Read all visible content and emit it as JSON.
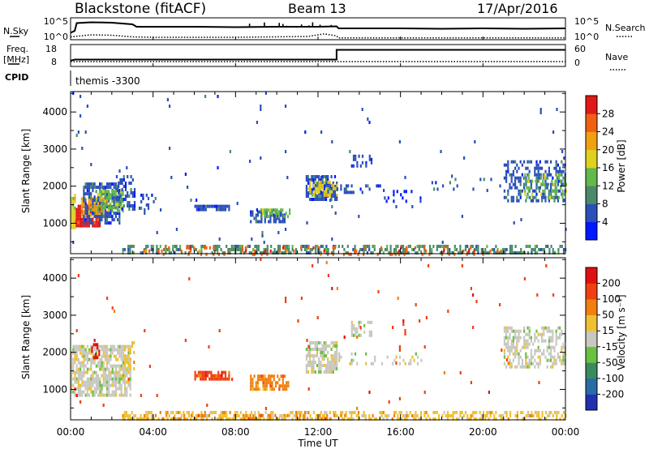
{
  "header": {
    "station": "Blackstone (fitACF)",
    "beam": "Beam 13",
    "date": "17/Apr/2016"
  },
  "top_panels": {
    "nsky_label": "N.Sky",
    "nsearch_label": "N.Search",
    "nsky_ticks": [
      "10^5",
      "10^0"
    ],
    "nsearch_ticks": [
      "10^5",
      "10^0"
    ],
    "freq_label": "Freq.",
    "freq_unit": "[MHz]",
    "freq_ticks": [
      "18",
      "8"
    ],
    "nave_label": "Nave",
    "nave_ticks": [
      "60",
      "0"
    ],
    "cpid_label": "CPID",
    "cpid_text": "themis -3300"
  },
  "axes": {
    "ylabel": "Slant Range [km]",
    "xlabel": "Time UT",
    "y_ticks": [
      "1000",
      "2000",
      "3000",
      "4000"
    ],
    "x_ticks": [
      "00:00",
      "04:00",
      "08:00",
      "12:00",
      "16:00",
      "20:00",
      "00:00"
    ]
  },
  "colorbars": {
    "power": {
      "label": "Power [dB]",
      "ticks": [
        "4",
        "8",
        "12",
        "16",
        "20",
        "24",
        "28"
      ],
      "colors": [
        "#0018ff",
        "#2a4fb8",
        "#4a8a6a",
        "#62b84a",
        "#e0d020",
        "#f0a010",
        "#f06010",
        "#e01818"
      ]
    },
    "velocity": {
      "label": "Velocity [m s⁻¹]",
      "ticks": [
        "200",
        "100",
        "50",
        "15",
        "-15",
        "-50",
        "-100",
        "-200"
      ],
      "colors": [
        "#2030b0",
        "#2a6aa8",
        "#3a8a60",
        "#6ac040",
        "#c8c8c0",
        "#f0c030",
        "#f08010",
        "#f04010",
        "#e01010"
      ]
    }
  },
  "chart_data": [
    {
      "type": "line",
      "title": "N.Sky / N.Search",
      "xlabel": "Time UT",
      "xlim": [
        0,
        24
      ],
      "series": [
        {
          "name": "N.Sky",
          "x": [
            0,
            0.2,
            0.3,
            1,
            2,
            3,
            3.2,
            4,
            6,
            8,
            10,
            12,
            12.9,
            13,
            14,
            16,
            18,
            20,
            22,
            24
          ],
          "y": [
            0.3,
            0.4,
            0.78,
            0.82,
            0.8,
            0.72,
            0.6,
            0.6,
            0.6,
            0.58,
            0.6,
            0.6,
            0.62,
            0.52,
            0.52,
            0.52,
            0.5,
            0.52,
            0.5,
            0.52
          ]
        },
        {
          "name": "N.Search",
          "x": [
            0,
            1,
            2,
            3,
            4,
            8,
            11.5,
            12.3,
            12.9,
            13,
            16,
            20,
            24
          ],
          "y": [
            0.1,
            0.2,
            0.18,
            0.1,
            0.08,
            0.08,
            0.12,
            0.25,
            0.15,
            0.05,
            0.05,
            0.05,
            0.05
          ]
        }
      ]
    },
    {
      "type": "line",
      "title": "Freq. / Nave",
      "xlabel": "Time UT",
      "xlim": [
        0,
        24
      ],
      "series": [
        {
          "name": "Freq.",
          "x": [
            0,
            0.2,
            12.9,
            12.9,
            24
          ],
          "y": [
            10.5,
            11,
            11,
            15.8,
            15.8
          ]
        },
        {
          "name": "Nave",
          "x": [
            0,
            24
          ],
          "y": [
            12,
            12
          ]
        }
      ]
    },
    {
      "type": "heatmap",
      "title": "Power [dB]",
      "xlabel": "Time UT",
      "ylabel": "Slant Range [km]",
      "xlim": [
        0,
        24
      ],
      "ylim": [
        180,
        4550
      ],
      "patches": [
        {
          "t0": 0.0,
          "t1": 0.25,
          "r0": 850,
          "r1": 1800,
          "cat": 4,
          "density": 0.9
        },
        {
          "t0": 0.25,
          "t1": 1.4,
          "r0": 900,
          "r1": 1500,
          "cat": 7,
          "density": 0.85
        },
        {
          "t0": 0.5,
          "t1": 1.8,
          "r0": 1200,
          "r1": 1700,
          "cat": 5,
          "density": 0.8
        },
        {
          "t0": 0.6,
          "t1": 2.4,
          "r0": 1000,
          "r1": 2100,
          "cat": 1,
          "density": 0.55
        },
        {
          "t0": 1.2,
          "t1": 2.5,
          "r0": 1350,
          "r1": 1900,
          "cat": 3,
          "density": 0.6
        },
        {
          "t0": 2.2,
          "t1": 3.1,
          "r0": 1400,
          "r1": 2300,
          "cat": 1,
          "density": 0.4
        },
        {
          "t0": 3.3,
          "t1": 4.2,
          "r0": 1400,
          "r1": 1800,
          "cat": 1,
          "density": 0.2
        },
        {
          "t0": 6.0,
          "t1": 7.7,
          "r0": 1350,
          "r1": 1500,
          "cat": 1,
          "density": 0.75
        },
        {
          "t0": 8.7,
          "t1": 10.4,
          "r0": 1050,
          "r1": 1350,
          "cat": 1,
          "density": 0.7
        },
        {
          "t0": 9.2,
          "t1": 10.6,
          "r0": 1150,
          "r1": 1400,
          "cat": 3,
          "density": 0.5
        },
        {
          "t0": 11.4,
          "t1": 12.9,
          "r0": 1650,
          "r1": 2300,
          "cat": 1,
          "density": 0.75
        },
        {
          "t0": 11.5,
          "t1": 12.9,
          "r0": 1750,
          "r1": 2150,
          "cat": 4,
          "density": 0.45
        },
        {
          "t0": 12.9,
          "t1": 15.0,
          "r0": 1800,
          "r1": 2050,
          "cat": 1,
          "density": 0.25
        },
        {
          "t0": 13.6,
          "t1": 14.6,
          "r0": 2550,
          "r1": 2850,
          "cat": 1,
          "density": 0.5
        },
        {
          "t0": 15.2,
          "t1": 17.0,
          "r0": 1600,
          "r1": 1900,
          "cat": 0,
          "density": 0.15
        },
        {
          "t0": 17.5,
          "t1": 21.0,
          "r0": 1900,
          "r1": 2400,
          "cat": 1,
          "density": 0.08
        },
        {
          "t0": 21.0,
          "t1": 24.0,
          "r0": 1600,
          "r1": 2700,
          "cat": 1,
          "density": 0.45
        },
        {
          "t0": 22.0,
          "t1": 24.0,
          "r0": 1700,
          "r1": 2350,
          "cat": 3,
          "density": 0.35
        },
        {
          "t0": 2.5,
          "t1": 24.0,
          "r0": 180,
          "r1": 420,
          "cat": 2,
          "density": 0.45
        },
        {
          "t0": 3.0,
          "t1": 21.0,
          "r0": 180,
          "r1": 380,
          "cat": 6,
          "density": 0.12
        },
        {
          "t0": 0.0,
          "t1": 24.0,
          "r0": 500,
          "r1": 4550,
          "cat": 1,
          "density": 0.006
        }
      ]
    },
    {
      "type": "heatmap",
      "title": "Velocity [m s⁻¹]",
      "xlabel": "Time UT",
      "ylabel": "Slant Range [km]",
      "xlim": [
        0,
        24
      ],
      "ylim": [
        180,
        4550
      ],
      "patches": [
        {
          "t0": 0.0,
          "t1": 2.9,
          "r0": 850,
          "r1": 2200,
          "cat": 4,
          "density": 0.75
        },
        {
          "t0": 1.0,
          "t1": 1.4,
          "r0": 1900,
          "r1": 2250,
          "cat": 8,
          "density": 0.6
        },
        {
          "t0": 2.6,
          "t1": 3.1,
          "r0": 1500,
          "r1": 2300,
          "cat": 5,
          "density": 0.3
        },
        {
          "t0": 6.0,
          "t1": 7.7,
          "r0": 1300,
          "r1": 1500,
          "cat": 7,
          "density": 0.75
        },
        {
          "t0": 8.7,
          "t1": 10.6,
          "r0": 1050,
          "r1": 1400,
          "cat": 6,
          "density": 0.7
        },
        {
          "t0": 11.4,
          "t1": 12.9,
          "r0": 1500,
          "r1": 2300,
          "cat": 4,
          "density": 0.7
        },
        {
          "t0": 13.6,
          "t1": 14.6,
          "r0": 2500,
          "r1": 2850,
          "cat": 4,
          "density": 0.45
        },
        {
          "t0": 12.9,
          "t1": 17.0,
          "r0": 1700,
          "r1": 2000,
          "cat": 4,
          "density": 0.2
        },
        {
          "t0": 21.0,
          "t1": 24.0,
          "r0": 1600,
          "r1": 2700,
          "cat": 4,
          "density": 0.5
        },
        {
          "t0": 2.5,
          "t1": 24.0,
          "r0": 180,
          "r1": 420,
          "cat": 5,
          "density": 0.5
        },
        {
          "t0": 4.0,
          "t1": 14.0,
          "r0": 180,
          "r1": 340,
          "cat": 6,
          "density": 0.25
        },
        {
          "t0": 0.0,
          "t1": 24.0,
          "r0": 500,
          "r1": 4550,
          "cat": 7,
          "density": 0.006
        }
      ]
    }
  ]
}
